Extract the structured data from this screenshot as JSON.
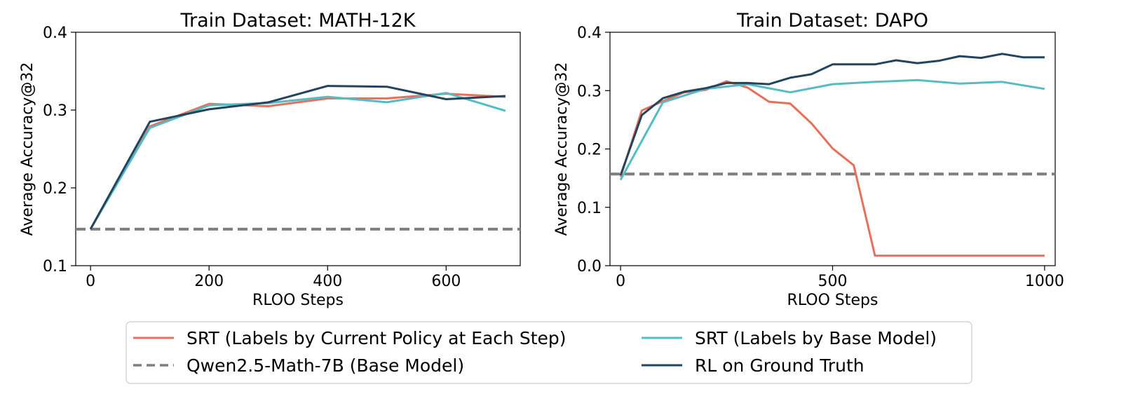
{
  "colors": {
    "srt_current": "#e8705a",
    "srt_base": "#56bcc4",
    "rl_gt": "#23445f",
    "base_model": "#7f7f7f"
  },
  "legend": {
    "items": [
      {
        "key": "srt_current",
        "label": "SRT (Labels by Current Policy at Each Step)",
        "style": "solid"
      },
      {
        "key": "base_model",
        "label": "Qwen2.5-Math-7B (Base Model)",
        "style": "dashed"
      },
      {
        "key": "srt_base",
        "label": "SRT (Labels by Base Model)",
        "style": "solid"
      },
      {
        "key": "rl_gt",
        "label": "RL on Ground Truth",
        "style": "solid"
      }
    ]
  },
  "chart_data": [
    {
      "type": "line",
      "title": "Train Dataset: MATH-12K",
      "xlabel": "RLOO Steps",
      "ylabel": "Average Accuracy@32",
      "xlim": [
        -25,
        725
      ],
      "ylim": [
        0.1,
        0.4
      ],
      "xticks": [
        0,
        200,
        400,
        600
      ],
      "yticks": [
        0.1,
        0.2,
        0.3,
        0.4
      ],
      "ytick_labels": [
        "0.1",
        "0.2",
        "0.3",
        "0.4"
      ],
      "xtick_labels": [
        "0",
        "200",
        "400",
        "600"
      ],
      "baseline": {
        "key": "base_model",
        "y": 0.147
      },
      "series": [
        {
          "key": "srt_current",
          "x": [
            0,
            100,
            200,
            300,
            400,
            500,
            600,
            700
          ],
          "y": [
            0.147,
            0.279,
            0.308,
            0.305,
            0.315,
            0.315,
            0.321,
            0.317
          ]
        },
        {
          "key": "srt_base",
          "x": [
            0,
            100,
            200,
            300,
            400,
            500,
            600,
            700
          ],
          "y": [
            0.147,
            0.277,
            0.306,
            0.309,
            0.317,
            0.31,
            0.322,
            0.299
          ]
        },
        {
          "key": "rl_gt",
          "x": [
            0,
            100,
            200,
            300,
            400,
            500,
            600,
            700
          ],
          "y": [
            0.147,
            0.285,
            0.301,
            0.31,
            0.331,
            0.33,
            0.314,
            0.318
          ]
        }
      ]
    },
    {
      "type": "line",
      "title": "Train Dataset: DAPO",
      "xlabel": "RLOO Steps",
      "ylabel": "Average Accuracy@32",
      "xlim": [
        -25,
        1025
      ],
      "ylim": [
        0.0,
        0.4
      ],
      "xticks": [
        0,
        500,
        1000
      ],
      "yticks": [
        0.0,
        0.1,
        0.2,
        0.3,
        0.4
      ],
      "ytick_labels": [
        "0.0",
        "0.1",
        "0.2",
        "0.3",
        "0.4"
      ],
      "xtick_labels": [
        "0",
        "500",
        "1000"
      ],
      "baseline": {
        "key": "base_model",
        "y": 0.157
      },
      "series": [
        {
          "key": "srt_current",
          "x": [
            0,
            50,
            100,
            150,
            200,
            250,
            300,
            350,
            400,
            450,
            500,
            550,
            600,
            650,
            700,
            750,
            800,
            850,
            900,
            950,
            1000
          ],
          "y": [
            0.152,
            0.266,
            0.282,
            0.297,
            0.301,
            0.316,
            0.305,
            0.281,
            0.278,
            0.244,
            0.201,
            0.172,
            0.017,
            0.017,
            0.017,
            0.017,
            0.017,
            0.017,
            0.017,
            0.017,
            0.017
          ]
        },
        {
          "key": "srt_base",
          "x": [
            0,
            100,
            200,
            300,
            400,
            500,
            600,
            700,
            800,
            900,
            1000
          ],
          "y": [
            0.147,
            0.28,
            0.303,
            0.311,
            0.297,
            0.311,
            0.315,
            0.318,
            0.312,
            0.315,
            0.303
          ]
        },
        {
          "key": "rl_gt",
          "x": [
            0,
            50,
            100,
            150,
            200,
            250,
            300,
            350,
            400,
            450,
            500,
            550,
            600,
            650,
            700,
            750,
            800,
            850,
            900,
            950,
            1000
          ],
          "y": [
            0.155,
            0.258,
            0.287,
            0.298,
            0.304,
            0.313,
            0.313,
            0.311,
            0.322,
            0.328,
            0.345,
            0.345,
            0.345,
            0.352,
            0.347,
            0.351,
            0.359,
            0.356,
            0.363,
            0.357,
            0.357
          ]
        }
      ]
    }
  ]
}
